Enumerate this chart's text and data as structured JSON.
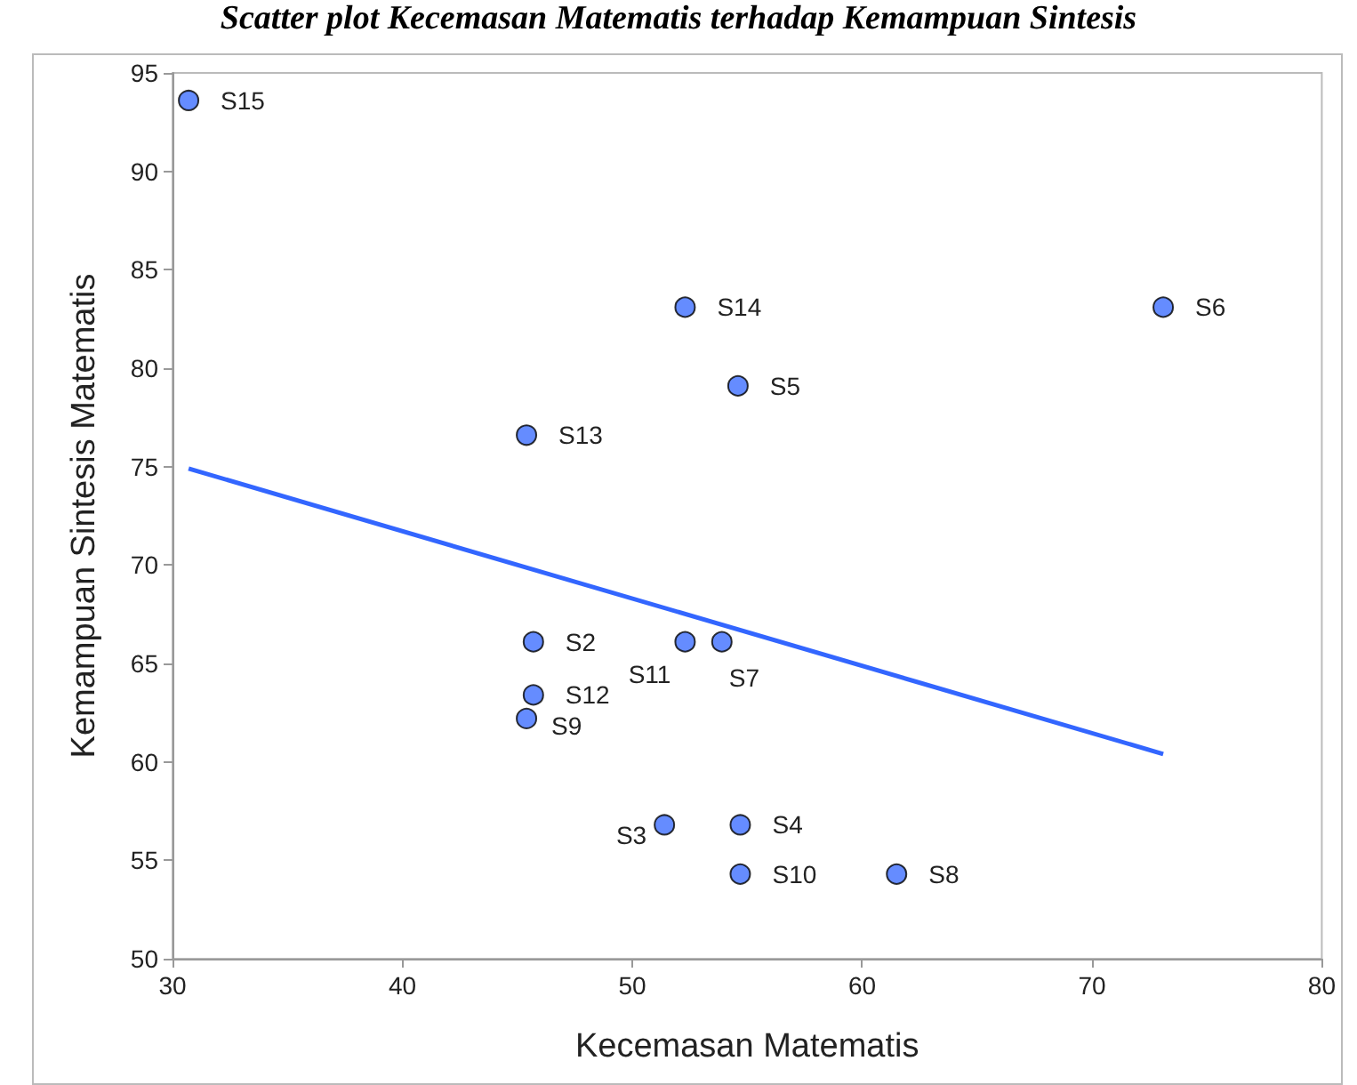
{
  "chart_data": {
    "type": "scatter",
    "title": "Scatter plot Kecemasan Matematis terhadap Kemampuan Sintesis",
    "xlabel": "Kecemasan Matematis",
    "ylabel": "Kemampuan Sintesis Matematis",
    "series": [
      {
        "type": "scatter",
        "color": "#3f6fff",
        "marker": "circle",
        "x": [
          30.7,
          52.3,
          54.6,
          73.1,
          45.4,
          45.7,
          52.3,
          53.9,
          45.7,
          45.4,
          51.4,
          54.7,
          54.7,
          61.5
        ],
        "values": [
          93.6,
          83.1,
          79.1,
          83.1,
          76.6,
          66.1,
          66.1,
          66.1,
          63.4,
          62.2,
          56.8,
          56.8,
          54.3,
          54.3
        ]
      },
      {
        "type": "line",
        "color": "#3366ff",
        "marker": "none",
        "line_style": "solid",
        "x": [
          30.7,
          73.1
        ],
        "values": [
          74.9,
          60.4
        ]
      }
    ],
    "annotations": [
      {
        "text": "S15",
        "x": 30.7,
        "y": 93.6
      },
      {
        "text": "S14",
        "x": 52.3,
        "y": 83.1
      },
      {
        "text": "S5",
        "x": 54.6,
        "y": 79.1
      },
      {
        "text": "S6",
        "x": 73.1,
        "y": 83.1
      },
      {
        "text": "S13",
        "x": 45.4,
        "y": 76.6
      },
      {
        "text": "S2",
        "x": 45.7,
        "y": 66.1
      },
      {
        "text": "S11",
        "x": 52.3,
        "y": 66.1
      },
      {
        "text": "S7",
        "x": 53.9,
        "y": 66.1
      },
      {
        "text": "S12",
        "x": 45.7,
        "y": 63.4
      },
      {
        "text": "S9",
        "x": 45.4,
        "y": 62.2
      },
      {
        "text": "S3",
        "x": 51.4,
        "y": 56.8
      },
      {
        "text": "S4",
        "x": 54.7,
        "y": 56.8
      },
      {
        "text": "S10",
        "x": 54.7,
        "y": 54.3
      },
      {
        "text": "S8",
        "x": 61.5,
        "y": 54.3
      }
    ],
    "xlim": [
      30,
      80
    ],
    "xticks": [
      30,
      40,
      50,
      60,
      70,
      80
    ],
    "ylim": [
      50,
      95
    ],
    "yticks": [
      50,
      55,
      60,
      65,
      70,
      75,
      80,
      85,
      90,
      95
    ],
    "grid": false
  }
}
